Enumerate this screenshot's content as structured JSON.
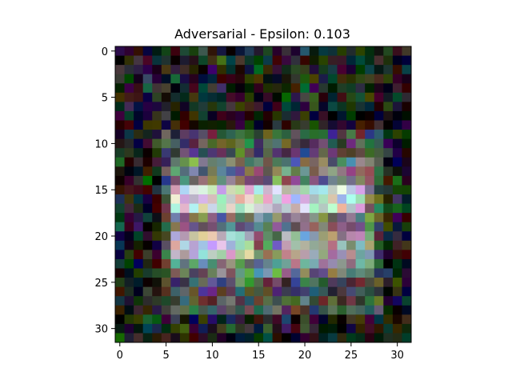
{
  "figure": {
    "title": "Adversarial - Epsilon: 0.103"
  },
  "image_panel": {
    "rows": 32,
    "cols": 32,
    "x_ticks": [
      "0",
      "5",
      "10",
      "15",
      "20",
      "25",
      "30"
    ],
    "y_ticks": [
      "0",
      "5",
      "10",
      "15",
      "20",
      "25",
      "30"
    ],
    "description_colors": {
      "background": "#ffffff",
      "axes": "#000000"
    }
  }
}
